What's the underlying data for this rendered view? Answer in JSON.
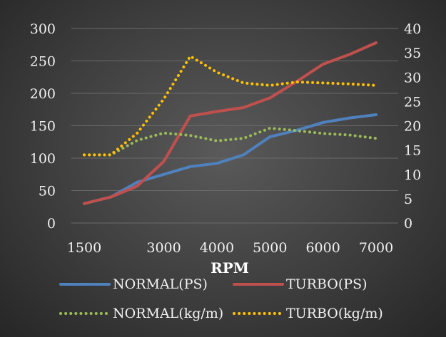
{
  "chart_data": {
    "type": "line",
    "title": "",
    "xlabel": "RPM",
    "x": [
      1500,
      2000,
      2500,
      3000,
      3500,
      4000,
      4500,
      5000,
      5500,
      6000,
      6500,
      7000
    ],
    "x_tick_labels": [
      "1500",
      "3000",
      "4000",
      "5000",
      "6000",
      "7000"
    ],
    "x_tick_values": [
      1500,
      3000,
      4000,
      5000,
      6000,
      7000
    ],
    "y_left": {
      "ylim": [
        0,
        300
      ],
      "ticks": [
        0,
        50,
        100,
        150,
        200,
        250,
        300
      ]
    },
    "y_right": {
      "ylim": [
        0,
        40
      ],
      "ticks": [
        0,
        5,
        10,
        15,
        20,
        25,
        30,
        35,
        40
      ]
    },
    "grid": true,
    "legend_position": "bottom",
    "series": [
      {
        "name": "NORMAL(PS)",
        "axis": "left",
        "style": "solid",
        "color": "#4f81bd",
        "values": [
          30,
          40,
          63,
          75,
          87,
          92,
          105,
          133,
          143,
          155,
          162,
          167
        ]
      },
      {
        "name": "TURBO(PS)",
        "axis": "left",
        "style": "solid",
        "color": "#c0504d",
        "values": [
          30,
          40,
          57,
          95,
          165,
          172,
          178,
          193,
          218,
          245,
          260,
          278
        ]
      },
      {
        "name": "NORMAL(kg/m)",
        "axis": "right",
        "style": "dotted",
        "color": "#9bbb59",
        "values": [
          14.0,
          14.0,
          17.0,
          18.5,
          18.0,
          16.9,
          17.4,
          19.5,
          19.0,
          18.4,
          18.1,
          17.4
        ]
      },
      {
        "name": "TURBO(kg/m)",
        "axis": "right",
        "style": "dotted",
        "color": "#ffc000",
        "values": [
          14.0,
          14.0,
          18.5,
          25.5,
          34.3,
          31.0,
          28.8,
          28.3,
          29.0,
          28.8,
          28.6,
          28.3
        ]
      }
    ]
  }
}
